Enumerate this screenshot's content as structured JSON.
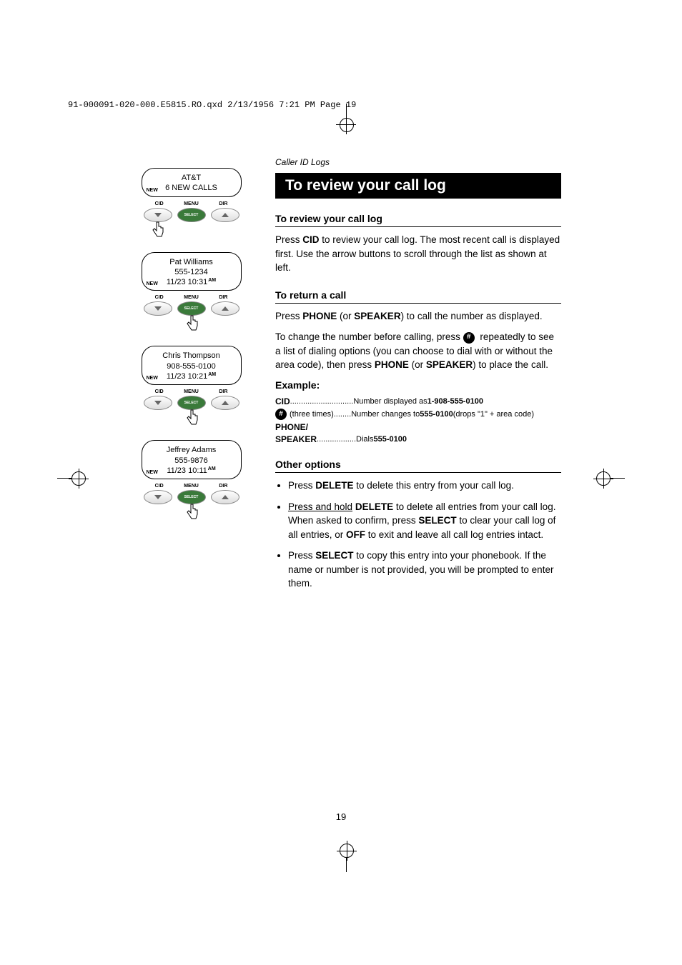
{
  "print_header": "91-000091-020-000.E5815.RO.qxd  2/13/1956  7:21 PM  Page 19",
  "screens": [
    {
      "line1": "AT&T",
      "line2": "6 NEW CALLS",
      "line3": "",
      "new": true,
      "am": false,
      "hand_target": "left"
    },
    {
      "line1": "Pat Williams",
      "line2": "555-1234",
      "line3": "11/23 10:31",
      "new": true,
      "am": true,
      "hand_target": "center"
    },
    {
      "line1": "Chris Thompson",
      "line2": "908-555-0100",
      "line3": "11/23 10:21",
      "new": true,
      "am": true,
      "hand_target": "center"
    },
    {
      "line1": "Jeffrey Adams",
      "line2": "555-9876",
      "line3": "11/23 10:11",
      "new": true,
      "am": true,
      "hand_target": "center"
    }
  ],
  "button_labels": {
    "left": "CID",
    "center": "MENU",
    "right": "DIR",
    "select": "SELECT"
  },
  "breadcrumb": "Caller ID Logs",
  "title": "To review your call log",
  "sections": {
    "review": {
      "heading": "To review your call log",
      "body": "Press CID to review your call log. The most recent call is displayed first. Use the arrow buttons to scroll through the list as shown at left."
    },
    "return": {
      "heading": "To return a call",
      "body1_pre": "Press ",
      "body1_b1": "PHONE",
      "body1_mid": " (or ",
      "body1_b2": "SPEAKER",
      "body1_post": ") to call the number as displayed.",
      "body2_pre": "To change the number before calling, press ",
      "body2_mid": " repeatedly to see a list of dialing options (you can choose to dial with or without the area code), then press ",
      "body2_b1": "PHONE",
      "body2_mid2": " (or ",
      "body2_b2": "SPEAKER",
      "body2_post": ") to place the call."
    },
    "example": {
      "label": "Example:",
      "line1_key": "CID",
      "line1_dots": ".............................",
      "line1_text": "Number displayed as ",
      "line1_bold": "1-908-555-0100",
      "line2_key": "#",
      "line2_paren": " (three times) ",
      "line2_dots": "........",
      "line2_text": "Number changes to ",
      "line2_bold": "555-0100",
      "line2_tail": " (drops \"1\" + area code)",
      "line3_key": "PHONE/",
      "line4_key": "SPEAKER",
      "line4_dots": " ..................",
      "line4_text": "Dials ",
      "line4_bold": "555-0100"
    },
    "other": {
      "heading": "Other options",
      "items": [
        {
          "pre": "Press ",
          "b1": "DELETE",
          "post": " to delete this entry from your call log."
        },
        {
          "u": "Press and hold",
          "sp": " ",
          "b1": "DELETE",
          "mid": " to delete all entries from your call log. When asked to confirm, press ",
          "b2": "SELECT",
          "mid2": " to clear your call log of all entries, or ",
          "b3": "OFF",
          "post": " to exit and leave all call log entries intact."
        },
        {
          "pre": "Press ",
          "b1": "SELECT",
          "post": " to copy this entry into your phonebook. If the name or number is not provided, you will be prompted to enter them."
        }
      ]
    }
  },
  "page_number": "19"
}
